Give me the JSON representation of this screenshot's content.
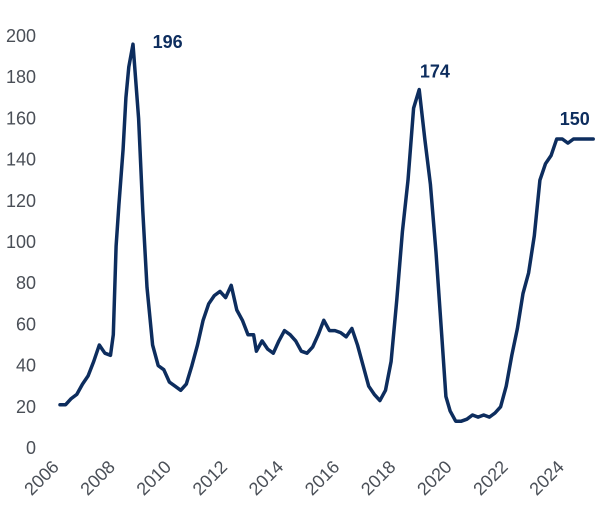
{
  "chart_data": {
    "type": "line",
    "title": "",
    "xlabel": "",
    "ylabel": "",
    "xlim": [
      2006,
      2025.1
    ],
    "ylim": [
      0,
      200
    ],
    "grid": false,
    "legend": "none",
    "color": "#0d2d5e",
    "x_ticks": [
      "2006",
      "2008",
      "2010",
      "2012",
      "2014",
      "2016",
      "2018",
      "2020",
      "2022",
      "2024"
    ],
    "x_tick_values": [
      2006,
      2008,
      2010,
      2012,
      2014,
      2016,
      2018,
      2020,
      2022,
      2024
    ],
    "y_ticks": [
      "0",
      "20",
      "40",
      "60",
      "80",
      "100",
      "120",
      "140",
      "160",
      "180",
      "200"
    ],
    "y_tick_values": [
      0,
      20,
      40,
      60,
      80,
      100,
      120,
      140,
      160,
      180,
      200
    ],
    "annotations": [
      {
        "text": "196",
        "x": 2008.8,
        "y": 196
      },
      {
        "text": "174",
        "x": 2019.75,
        "y": 174
      },
      {
        "text": "150",
        "x": 2024.95,
        "y": 150
      }
    ],
    "series": [
      {
        "x": [
          2006.0,
          2006.2,
          2006.4,
          2006.6,
          2006.8,
          2007.0,
          2007.2,
          2007.4,
          2007.6,
          2007.8,
          2007.9,
          2008.0,
          2008.1,
          2008.25,
          2008.35,
          2008.45,
          2008.6,
          2008.8,
          2008.95,
          2009.1,
          2009.3,
          2009.5,
          2009.7,
          2009.9,
          2010.1,
          2010.3,
          2010.5,
          2010.7,
          2010.9,
          2011.1,
          2011.3,
          2011.5,
          2011.7,
          2011.9,
          2012.1,
          2012.3,
          2012.5,
          2012.7,
          2012.9,
          2013.0,
          2013.2,
          2013.4,
          2013.6,
          2013.8,
          2014.0,
          2014.2,
          2014.4,
          2014.6,
          2014.8,
          2015.0,
          2015.2,
          2015.4,
          2015.6,
          2015.8,
          2016.0,
          2016.2,
          2016.4,
          2016.6,
          2016.8,
          2017.0,
          2017.2,
          2017.4,
          2017.6,
          2017.8,
          2018.0,
          2018.2,
          2018.4,
          2018.6,
          2018.8,
          2019.0,
          2019.2,
          2019.4,
          2019.6,
          2019.75,
          2019.9,
          2020.1,
          2020.3,
          2020.5,
          2020.7,
          2020.9,
          2021.1,
          2021.3,
          2021.5,
          2021.7,
          2021.9,
          2022.1,
          2022.3,
          2022.5,
          2022.7,
          2022.9,
          2023.1,
          2023.3,
          2023.5,
          2023.7,
          2023.9,
          2024.1,
          2024.3,
          2024.5,
          2024.7,
          2024.85,
          2025.0
        ],
        "y": [
          21,
          21,
          24,
          26,
          31,
          35,
          42,
          50,
          46,
          45,
          55,
          98,
          118,
          145,
          170,
          185,
          196,
          160,
          115,
          78,
          50,
          40,
          38,
          32,
          30,
          28,
          31,
          40,
          50,
          62,
          70,
          74,
          76,
          73,
          79,
          67,
          62,
          55,
          55,
          47,
          52,
          48,
          46,
          52,
          57,
          55,
          52,
          47,
          46,
          49,
          55,
          62,
          57,
          57,
          56,
          54,
          58,
          50,
          40,
          30,
          26,
          23,
          28,
          42,
          72,
          105,
          130,
          165,
          174,
          150,
          128,
          95,
          55,
          25,
          18,
          13,
          13,
          14,
          16,
          15,
          16,
          15,
          17,
          20,
          30,
          45,
          58,
          75,
          85,
          103,
          130,
          138,
          142,
          150,
          150,
          148,
          150,
          150,
          150,
          150,
          150
        ]
      }
    ]
  }
}
